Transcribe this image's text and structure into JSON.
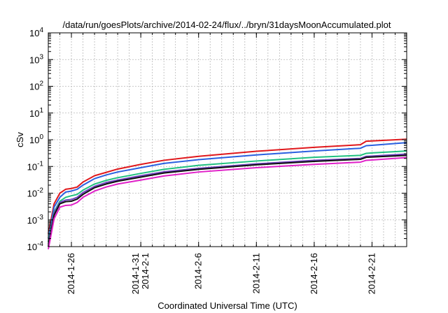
{
  "chart_data": {
    "type": "line",
    "title": "/data/run/goesPlots/archive/2014-02-24/flux/../bryn/31daysMoonAccumulated.plot",
    "xlabel": "Coordinated Universal Time (UTC)",
    "ylabel": "cSv",
    "yscale": "log",
    "xlim": [
      "2014-01-24",
      "2014-02-24"
    ],
    "ylim": [
      0.0001,
      10000
    ],
    "grid": true,
    "legend": "none",
    "y_tick_exponents": [
      "-4",
      "-3",
      "-2",
      "-1",
      "0",
      "1",
      "2",
      "3",
      "4"
    ],
    "y_tick_base": "10",
    "x_ticks": [
      {
        "date": "2014-01-26",
        "lines": [
          "2014-1-26"
        ]
      },
      {
        "date": "2014-02-01",
        "lines": [
          "2014-1-31",
          "2014-2-1"
        ]
      },
      {
        "date": "2014-02-06",
        "lines": [
          "2014-2-6"
        ]
      },
      {
        "date": "2014-02-11",
        "lines": [
          "2014-2-11"
        ]
      },
      {
        "date": "2014-02-16",
        "lines": [
          "2014-2-16"
        ]
      },
      {
        "date": "2014-02-21",
        "lines": [
          "2014-2-21"
        ]
      }
    ],
    "series": [
      {
        "color": "#e0181c",
        "points": [
          [
            "2014-01-24",
            0.0003
          ],
          [
            "2014-01-24T12:00",
            0.004
          ],
          [
            "2014-01-25",
            0.01
          ],
          [
            "2014-01-25T12:00",
            0.014
          ],
          [
            "2014-01-26",
            0.015
          ],
          [
            "2014-01-26T12:00",
            0.017
          ],
          [
            "2014-01-27",
            0.026
          ],
          [
            "2014-01-28",
            0.045
          ],
          [
            "2014-01-29",
            0.06
          ],
          [
            "2014-01-30",
            0.08
          ],
          [
            "2014-02-01",
            0.12
          ],
          [
            "2014-02-03",
            0.17
          ],
          [
            "2014-02-06",
            0.24
          ],
          [
            "2014-02-11",
            0.37
          ],
          [
            "2014-02-16",
            0.52
          ],
          [
            "2014-02-20",
            0.65
          ],
          [
            "2014-02-20T12:00",
            0.88
          ],
          [
            "2014-02-21",
            0.9
          ],
          [
            "2014-02-24",
            1.05
          ]
        ]
      },
      {
        "color": "#2a60e0",
        "points": [
          [
            "2014-01-24",
            0.0002
          ],
          [
            "2014-01-24T12:00",
            0.003
          ],
          [
            "2014-01-25",
            0.007
          ],
          [
            "2014-01-25T12:00",
            0.011
          ],
          [
            "2014-01-26",
            0.012
          ],
          [
            "2014-01-26T12:00",
            0.014
          ],
          [
            "2014-01-27",
            0.02
          ],
          [
            "2014-01-28",
            0.035
          ],
          [
            "2014-01-29",
            0.048
          ],
          [
            "2014-01-30",
            0.062
          ],
          [
            "2014-02-01",
            0.09
          ],
          [
            "2014-02-03",
            0.13
          ],
          [
            "2014-02-06",
            0.18
          ],
          [
            "2014-02-11",
            0.27
          ],
          [
            "2014-02-16",
            0.38
          ],
          [
            "2014-02-20",
            0.48
          ],
          [
            "2014-02-20T12:00",
            0.6
          ],
          [
            "2014-02-21",
            0.62
          ],
          [
            "2014-02-24",
            0.78
          ]
        ]
      },
      {
        "color": "#20c080",
        "points": [
          [
            "2014-01-24",
            0.00015
          ],
          [
            "2014-01-24T12:00",
            0.002
          ],
          [
            "2014-01-25",
            0.005
          ],
          [
            "2014-01-25T12:00",
            0.007
          ],
          [
            "2014-01-26",
            0.008
          ],
          [
            "2014-01-26T12:00",
            0.009
          ],
          [
            "2014-01-27",
            0.013
          ],
          [
            "2014-01-28",
            0.022
          ],
          [
            "2014-01-29",
            0.03
          ],
          [
            "2014-01-30",
            0.038
          ],
          [
            "2014-02-01",
            0.055
          ],
          [
            "2014-02-03",
            0.078
          ],
          [
            "2014-02-06",
            0.11
          ],
          [
            "2014-02-11",
            0.16
          ],
          [
            "2014-02-16",
            0.22
          ],
          [
            "2014-02-20",
            0.26
          ],
          [
            "2014-02-20T12:00",
            0.31
          ],
          [
            "2014-02-21",
            0.32
          ],
          [
            "2014-02-24",
            0.38
          ]
        ]
      },
      {
        "color": "#7040c0",
        "points": [
          [
            "2014-01-24",
            0.00012
          ],
          [
            "2014-01-24T12:00",
            0.0018
          ],
          [
            "2014-01-25",
            0.0045
          ],
          [
            "2014-01-25T12:00",
            0.0055
          ],
          [
            "2014-01-26",
            0.0058
          ],
          [
            "2014-01-26T12:00",
            0.007
          ],
          [
            "2014-01-27",
            0.0105
          ],
          [
            "2014-01-28",
            0.018
          ],
          [
            "2014-01-29",
            0.025
          ],
          [
            "2014-01-30",
            0.031
          ],
          [
            "2014-02-01",
            0.045
          ],
          [
            "2014-02-03",
            0.063
          ],
          [
            "2014-02-06",
            0.085
          ],
          [
            "2014-02-11",
            0.125
          ],
          [
            "2014-02-16",
            0.17
          ],
          [
            "2014-02-20",
            0.2
          ],
          [
            "2014-02-20T12:00",
            0.24
          ],
          [
            "2014-02-21",
            0.245
          ],
          [
            "2014-02-24",
            0.29
          ]
        ]
      },
      {
        "color": "#101010",
        "points": [
          [
            "2014-01-24",
            0.0001
          ],
          [
            "2014-01-24T12:00",
            0.0015
          ],
          [
            "2014-01-25",
            0.004
          ],
          [
            "2014-01-25T12:00",
            0.0048
          ],
          [
            "2014-01-26",
            0.005
          ],
          [
            "2014-01-26T12:00",
            0.006
          ],
          [
            "2014-01-27",
            0.009
          ],
          [
            "2014-01-28",
            0.016
          ],
          [
            "2014-01-29",
            0.022
          ],
          [
            "2014-01-30",
            0.028
          ],
          [
            "2014-02-01",
            0.04
          ],
          [
            "2014-02-03",
            0.057
          ],
          [
            "2014-02-06",
            0.078
          ],
          [
            "2014-02-11",
            0.115
          ],
          [
            "2014-02-16",
            0.155
          ],
          [
            "2014-02-20",
            0.185
          ],
          [
            "2014-02-20T12:00",
            0.22
          ],
          [
            "2014-02-21",
            0.225
          ],
          [
            "2014-02-24",
            0.26
          ]
        ]
      },
      {
        "color": "#e020c8",
        "points": [
          [
            "2014-01-24",
            8e-05
          ],
          [
            "2014-01-24T12:00",
            0.0011
          ],
          [
            "2014-01-25",
            0.003
          ],
          [
            "2014-01-25T12:00",
            0.0035
          ],
          [
            "2014-01-26",
            0.0036
          ],
          [
            "2014-01-26T12:00",
            0.0045
          ],
          [
            "2014-01-27",
            0.007
          ],
          [
            "2014-01-28",
            0.012
          ],
          [
            "2014-01-29",
            0.017
          ],
          [
            "2014-01-30",
            0.022
          ],
          [
            "2014-02-01",
            0.031
          ],
          [
            "2014-02-03",
            0.044
          ],
          [
            "2014-02-06",
            0.062
          ],
          [
            "2014-02-11",
            0.09
          ],
          [
            "2014-02-16",
            0.12
          ],
          [
            "2014-02-20",
            0.145
          ],
          [
            "2014-02-20T12:00",
            0.17
          ],
          [
            "2014-02-21",
            0.175
          ],
          [
            "2014-02-24",
            0.215
          ]
        ]
      }
    ]
  }
}
